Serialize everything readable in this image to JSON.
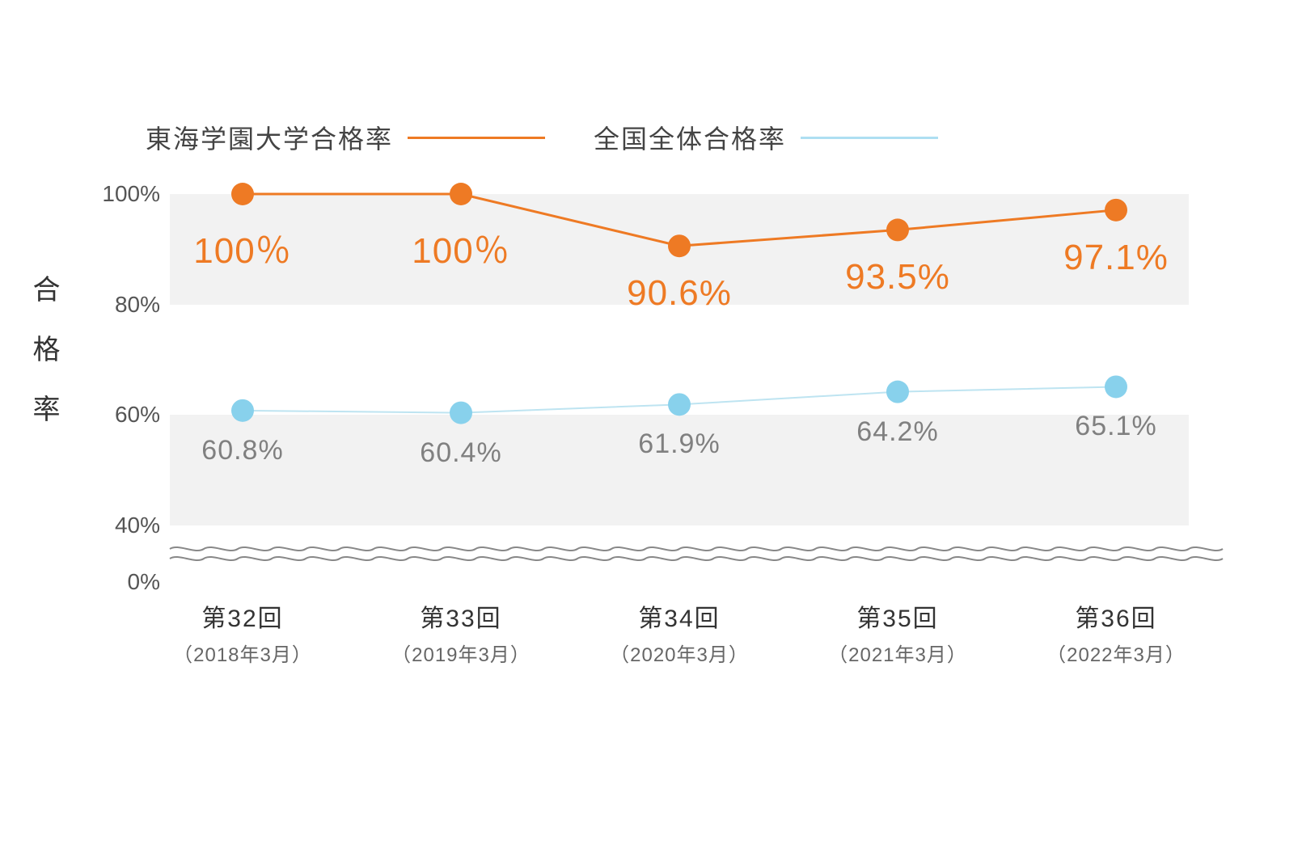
{
  "chart": {
    "type": "line",
    "ylabel": "合格率",
    "legend": {
      "series1": {
        "label": "東海学園大学合格率",
        "color": "#ee7a24"
      },
      "series2": {
        "label": "全国全体合格率",
        "color": "#aedff2"
      }
    },
    "yaxis": {
      "ticks": [
        0,
        40,
        60,
        80,
        100
      ],
      "tick_labels": [
        "0%",
        "40%",
        "60%",
        "80%",
        "100%"
      ],
      "fontsize": 28,
      "color": "#555"
    },
    "xaxis": {
      "categories": [
        "第32回",
        "第33回",
        "第34回",
        "第35回",
        "第36回"
      ],
      "sublabels": [
        "（2018年3月）",
        "（2019年3月）",
        "（2020年3月）",
        "（2021年3月）",
        "（2022年3月）"
      ],
      "main_fontsize": 30,
      "sub_fontsize": 24
    },
    "bands": [
      {
        "from": 40,
        "to": 60,
        "color": "#f2f2f2"
      },
      {
        "from": 60,
        "to": 80,
        "color": "#ffffff"
      },
      {
        "from": 80,
        "to": 100,
        "color": "#f2f2f2"
      }
    ],
    "series1": {
      "name": "東海学園大学合格率",
      "color": "#ee7a24",
      "values": [
        100,
        100,
        90.6,
        93.5,
        97.1
      ],
      "value_labels": [
        "100％",
        "100％",
        "90.6%",
        "93.5%",
        "97.1%"
      ],
      "line_width": 3,
      "marker_radius": 14,
      "label_fontsize": 44,
      "label_offset_y": 34
    },
    "series2": {
      "name": "全国全体合格率",
      "color": "#88d1ec",
      "line_color": "#bee4f1",
      "values": [
        60.8,
        60.4,
        61.9,
        64.2,
        65.1
      ],
      "value_labels": [
        "60.8%",
        "60.4%",
        "61.9%",
        "64.2%",
        "65.1%"
      ],
      "line_width": 2,
      "marker_radius": 14,
      "label_color": "#808080",
      "label_fontsize": 34,
      "label_offset_y": 30
    },
    "axis_break": {
      "between": [
        0,
        40
      ],
      "wave_color": "#888888",
      "wave_stroke": 2
    },
    "background_color": "#ffffff"
  }
}
